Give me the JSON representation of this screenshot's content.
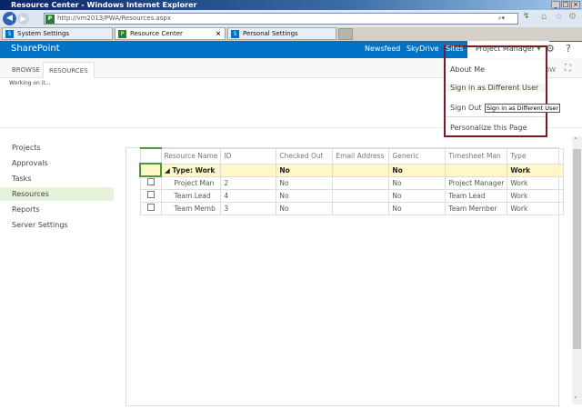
{
  "window": {
    "title": "Resource Center - Windows Internet Explorer"
  },
  "browser": {
    "url": "http://vm2013/PWA/Resources.aspx",
    "tabs": [
      {
        "label": "System Settings"
      },
      {
        "label": "Resource Center",
        "active": true
      },
      {
        "label": "Personal Settings"
      }
    ]
  },
  "suitebar": {
    "brand": "SharePoint",
    "links": [
      "Newsfeed",
      "SkyDrive",
      "Sites"
    ],
    "user": "Project Manager",
    "color": "#0072c6"
  },
  "ribbon": {
    "tabs": [
      "BROWSE",
      "RESOURCES"
    ],
    "partial": "LOW"
  },
  "status": "Working on it...",
  "leftnav": {
    "items": [
      "Projects",
      "Approvals",
      "Tasks",
      "Resources",
      "Reports",
      "Server Settings"
    ],
    "selected": "Resources"
  },
  "grid": {
    "columns": [
      "Resource Name",
      "ID",
      "Checked Out",
      "Email Address",
      "Generic",
      "Timesheet Man",
      "Type"
    ],
    "group": {
      "label": "Type: Work",
      "checked_out": "No",
      "generic": "No",
      "type": "Work"
    },
    "rows": [
      {
        "name": "Project Man",
        "id": "2",
        "checked_out": "No",
        "email": "",
        "generic": "No",
        "timesheet": "Project Manager",
        "type": "Work"
      },
      {
        "name": "Team Lead",
        "id": "4",
        "checked_out": "No",
        "email": "",
        "generic": "No",
        "timesheet": "Team Lead",
        "type": "Work"
      },
      {
        "name": "Team Memb",
        "id": "3",
        "checked_out": "No",
        "email": "",
        "generic": "No",
        "timesheet": "Team Member",
        "type": "Work"
      }
    ]
  },
  "menu": {
    "items": [
      "About Me",
      "Sign in as Different User",
      "Sign Out",
      "Personalize this Page"
    ],
    "tooltip": "Sign in as Different User",
    "border_color": "#7a1a22"
  }
}
